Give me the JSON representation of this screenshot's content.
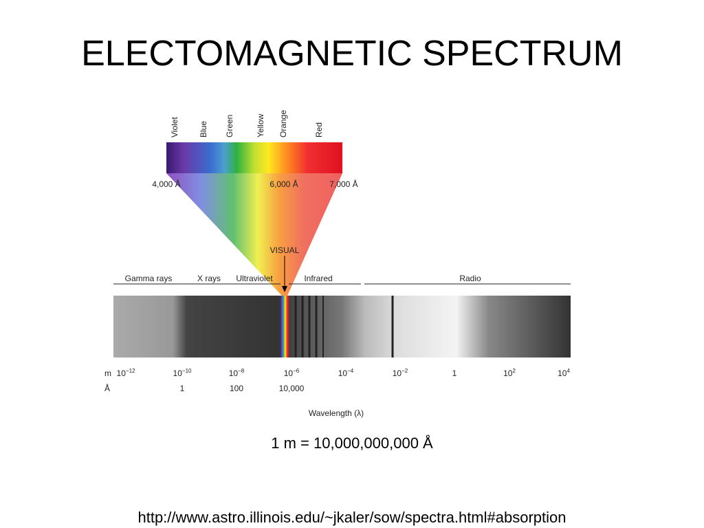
{
  "header": {
    "title": "ELECTOMAGNETIC SPECTRUM"
  },
  "visible": {
    "colors": [
      "Violet",
      "Blue",
      "Green",
      "Yellow",
      "Orange",
      "Red"
    ],
    "wavelengths": [
      "4,000 Å",
      "6,000 Å",
      "7,000 Å"
    ],
    "marker": "VISUAL"
  },
  "bands": [
    "Gamma rays",
    "X rays",
    "Ultraviolet",
    "Infrared",
    "Radio"
  ],
  "scale": {
    "meter_unit": "m",
    "angstrom_unit": "Å",
    "meters": [
      {
        "base": "10",
        "exp": "−12"
      },
      {
        "base": "10",
        "exp": "−10"
      },
      {
        "base": "10",
        "exp": "−8"
      },
      {
        "base": "10",
        "exp": "−6"
      },
      {
        "base": "10",
        "exp": "−4"
      },
      {
        "base": "10",
        "exp": "−2"
      },
      {
        "base": "1"
      },
      {
        "base": "10",
        "exp": "2"
      },
      {
        "base": "10",
        "exp": "4"
      }
    ],
    "angstroms": [
      "1",
      "100",
      "10,000"
    ],
    "axis_label": "Wavelength (λ)"
  },
  "conversion": "1 m = 10,000,000,000 Å",
  "footer": {
    "url": "http://www.astro.illinois.edu/~jkaler/sow/spectra.html#absorption"
  }
}
